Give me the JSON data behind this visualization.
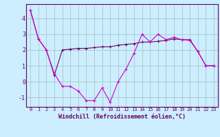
{
  "xlabel": "Windchill (Refroidissement éolien,°C)",
  "background_color": "#cceeff",
  "grid_color": "#aacccc",
  "line_color": "#cc00cc",
  "line2_color": "#660066",
  "xlim": [
    -0.5,
    23.5
  ],
  "ylim": [
    -1.6,
    4.9
  ],
  "xticks": [
    0,
    1,
    2,
    3,
    4,
    5,
    6,
    7,
    8,
    9,
    10,
    11,
    12,
    13,
    14,
    15,
    16,
    17,
    18,
    19,
    20,
    21,
    22,
    23
  ],
  "yticks": [
    -1,
    0,
    1,
    2,
    3,
    4
  ],
  "line1_x": [
    0,
    1,
    2,
    3,
    4,
    5,
    6,
    7,
    8,
    9,
    10,
    11,
    12,
    13,
    14,
    15,
    16,
    17,
    18,
    19,
    20,
    21,
    22,
    23
  ],
  "line1_y": [
    4.5,
    2.7,
    2.0,
    0.5,
    -0.3,
    -0.3,
    -0.6,
    -1.2,
    -1.2,
    -0.4,
    -1.3,
    0.0,
    0.8,
    1.8,
    3.0,
    2.5,
    3.0,
    2.65,
    2.8,
    2.65,
    2.6,
    1.9,
    1.0,
    1.0
  ],
  "line2_x": [
    0,
    1,
    2,
    3,
    4,
    5,
    6,
    7,
    8,
    9,
    10,
    11,
    12,
    13,
    14,
    15,
    16,
    17,
    18,
    19,
    20,
    21,
    22,
    23
  ],
  "line2_y": [
    4.5,
    2.7,
    2.0,
    0.4,
    2.0,
    2.05,
    2.1,
    2.1,
    2.15,
    2.2,
    2.2,
    2.3,
    2.35,
    2.4,
    2.5,
    2.5,
    2.55,
    2.6,
    2.7,
    2.65,
    2.65,
    1.9,
    1.0,
    1.0
  ],
  "xlabel_fontsize": 6,
  "tick_fontsize": 5,
  "ytick_fontsize": 6
}
